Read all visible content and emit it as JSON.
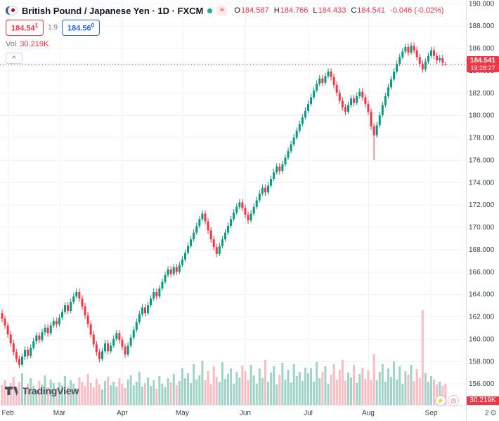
{
  "header": {
    "title": "British Pound / Japanese Yen · 1D · FXCM",
    "ohlc": {
      "o_label": "O",
      "o_value": "184.587",
      "h_label": "H",
      "h_value": "184.766",
      "l_label": "L",
      "l_value": "184.433",
      "c_label": "C",
      "c_value": "184.541",
      "change": "-0.046 (-0.02%)"
    },
    "sell_price": "184.54",
    "sell_sup": "1",
    "spread": "1.9",
    "buy_price": "184.56",
    "buy_sup": "0",
    "vol_label": "Vol",
    "vol_value": "30.219K"
  },
  "price_label": {
    "price": "184.541",
    "countdown": "19:28:27"
  },
  "volume_axis_label": "30.219K",
  "logo": {
    "text": "TradingView"
  },
  "icons": {
    "lightning": "⚡",
    "clock": "◷",
    "gear": "⚙",
    "menu": "≡",
    "collapse": "^"
  },
  "colors": {
    "up": "#089981",
    "down": "#f23645",
    "vol_up": "#9fd4c6",
    "vol_down": "#f7bdc3",
    "grid": "#f0f3fa",
    "axis_border": "#e0e3eb",
    "buy_blue": "#2962ff"
  },
  "chart_data": {
    "type": "candlestick",
    "title": "British Pound / Japanese Yen, 1D, FXCM",
    "ylim": [
      154.1,
      190.3
    ],
    "y_axis": {
      "ticks": [
        190,
        188,
        186,
        184,
        182,
        180,
        178,
        176,
        174,
        172,
        170,
        168,
        166,
        164,
        162,
        160,
        158,
        156
      ]
    },
    "x_axis": {
      "labels": [
        "Feb",
        "Mar",
        "Apr",
        "May",
        "Jun",
        "Jul",
        "Aug",
        "Sep"
      ],
      "tick_indices": [
        2,
        20,
        42,
        63,
        85,
        107,
        128,
        150
      ],
      "partial_right_label": "2"
    },
    "last": {
      "open": 184.587,
      "high": 184.766,
      "low": 184.433,
      "close": 184.541,
      "change": -0.046,
      "change_pct": -0.02
    },
    "candles": [
      [
        162.3,
        162.6,
        161.5,
        161.8
      ],
      [
        161.8,
        162.1,
        160.9,
        161.2
      ],
      [
        161.2,
        161.5,
        160.1,
        160.4
      ],
      [
        160.4,
        160.7,
        159.3,
        159.6
      ],
      [
        159.6,
        159.9,
        158.5,
        158.8
      ],
      [
        158.8,
        159.1,
        157.9,
        158.2
      ],
      [
        158.2,
        158.5,
        157.4,
        157.7
      ],
      [
        157.7,
        158.7,
        157.5,
        158.4
      ],
      [
        158.4,
        159.3,
        158.1,
        159.0
      ],
      [
        159.0,
        159.3,
        158.2,
        158.5
      ],
      [
        158.5,
        159.5,
        158.3,
        159.2
      ],
      [
        159.2,
        160.1,
        159.0,
        159.8
      ],
      [
        159.8,
        160.6,
        159.5,
        160.3
      ],
      [
        160.3,
        160.6,
        159.6,
        159.9
      ],
      [
        159.9,
        160.9,
        159.7,
        160.6
      ],
      [
        160.6,
        161.3,
        160.3,
        161.0
      ],
      [
        161.0,
        161.3,
        160.2,
        160.5
      ],
      [
        160.5,
        161.5,
        160.3,
        161.2
      ],
      [
        161.2,
        161.9,
        161.0,
        161.6
      ],
      [
        161.6,
        161.9,
        161.0,
        161.3
      ],
      [
        161.3,
        162.2,
        161.1,
        161.9
      ],
      [
        161.9,
        162.7,
        161.7,
        162.4
      ],
      [
        162.4,
        163.3,
        162.2,
        163.0
      ],
      [
        163.0,
        163.3,
        162.2,
        162.5
      ],
      [
        162.5,
        163.6,
        162.3,
        163.3
      ],
      [
        163.3,
        164.1,
        163.1,
        163.8
      ],
      [
        163.8,
        164.5,
        163.6,
        164.2
      ],
      [
        164.2,
        164.5,
        163.3,
        163.6
      ],
      [
        163.6,
        163.9,
        162.6,
        162.9
      ],
      [
        162.9,
        163.2,
        161.8,
        162.1
      ],
      [
        162.1,
        162.4,
        161.0,
        161.3
      ],
      [
        161.3,
        161.6,
        160.1,
        160.4
      ],
      [
        160.4,
        160.7,
        159.2,
        159.5
      ],
      [
        159.5,
        159.8,
        158.5,
        158.8
      ],
      [
        158.8,
        159.1,
        157.9,
        158.2
      ],
      [
        158.2,
        159.2,
        158.0,
        158.9
      ],
      [
        158.9,
        159.9,
        158.7,
        159.6
      ],
      [
        159.6,
        159.9,
        158.6,
        158.9
      ],
      [
        158.9,
        159.7,
        158.7,
        159.4
      ],
      [
        159.4,
        160.3,
        159.2,
        160.0
      ],
      [
        160.0,
        160.8,
        159.8,
        160.5
      ],
      [
        160.5,
        160.8,
        159.6,
        159.9
      ],
      [
        159.9,
        160.2,
        159.0,
        159.3
      ],
      [
        159.3,
        159.6,
        158.3,
        158.6
      ],
      [
        158.6,
        159.7,
        158.4,
        159.4
      ],
      [
        159.4,
        160.4,
        159.2,
        160.1
      ],
      [
        160.1,
        161.1,
        159.9,
        160.8
      ],
      [
        160.8,
        161.8,
        160.6,
        161.5
      ],
      [
        161.5,
        162.5,
        161.3,
        162.2
      ],
      [
        162.2,
        163.1,
        162.0,
        162.8
      ],
      [
        162.8,
        163.1,
        162.0,
        162.3
      ],
      [
        162.3,
        163.3,
        162.1,
        163.0
      ],
      [
        163.0,
        163.9,
        162.8,
        163.6
      ],
      [
        163.6,
        164.5,
        163.4,
        164.2
      ],
      [
        164.2,
        164.5,
        163.5,
        163.8
      ],
      [
        163.8,
        164.8,
        163.6,
        164.5
      ],
      [
        164.5,
        165.4,
        164.3,
        165.1
      ],
      [
        165.1,
        166.0,
        164.9,
        165.7
      ],
      [
        165.7,
        166.5,
        165.5,
        166.2
      ],
      [
        166.2,
        166.5,
        165.5,
        165.8
      ],
      [
        165.8,
        166.7,
        165.6,
        166.4
      ],
      [
        166.4,
        166.7,
        165.7,
        166.0
      ],
      [
        166.0,
        166.9,
        165.8,
        166.6
      ],
      [
        166.6,
        167.4,
        166.4,
        167.1
      ],
      [
        167.1,
        168.0,
        166.9,
        167.7
      ],
      [
        167.7,
        168.6,
        167.5,
        168.3
      ],
      [
        168.3,
        169.2,
        168.1,
        168.9
      ],
      [
        168.9,
        169.8,
        168.7,
        169.5
      ],
      [
        169.5,
        170.4,
        169.3,
        170.1
      ],
      [
        170.1,
        171.0,
        169.9,
        170.7
      ],
      [
        170.7,
        171.5,
        170.5,
        171.2
      ],
      [
        171.2,
        171.5,
        170.2,
        170.5
      ],
      [
        170.5,
        170.8,
        169.4,
        169.7
      ],
      [
        169.7,
        170.0,
        168.6,
        168.9
      ],
      [
        168.9,
        169.2,
        167.9,
        168.2
      ],
      [
        168.2,
        168.5,
        167.3,
        167.6
      ],
      [
        167.6,
        168.6,
        167.4,
        168.3
      ],
      [
        168.3,
        169.2,
        168.1,
        168.9
      ],
      [
        168.9,
        169.8,
        168.7,
        169.5
      ],
      [
        169.5,
        170.4,
        169.3,
        170.1
      ],
      [
        170.1,
        171.0,
        169.9,
        170.7
      ],
      [
        170.7,
        171.6,
        170.5,
        171.3
      ],
      [
        171.3,
        172.1,
        171.1,
        171.8
      ],
      [
        171.8,
        172.5,
        171.6,
        172.2
      ],
      [
        172.2,
        172.5,
        171.4,
        171.7
      ],
      [
        171.7,
        172.0,
        170.8,
        171.1
      ],
      [
        171.1,
        171.4,
        170.3,
        170.6
      ],
      [
        170.6,
        171.5,
        170.4,
        171.2
      ],
      [
        171.2,
        172.1,
        171.0,
        171.8
      ],
      [
        171.8,
        172.7,
        171.6,
        172.4
      ],
      [
        172.4,
        173.3,
        172.2,
        173.0
      ],
      [
        173.0,
        173.8,
        172.8,
        173.5
      ],
      [
        173.5,
        173.8,
        172.8,
        173.1
      ],
      [
        173.1,
        174.0,
        172.9,
        173.7
      ],
      [
        173.7,
        174.6,
        173.5,
        174.3
      ],
      [
        174.3,
        175.2,
        174.1,
        174.9
      ],
      [
        174.9,
        175.7,
        174.7,
        175.4
      ],
      [
        175.4,
        175.7,
        174.7,
        175.0
      ],
      [
        175.0,
        175.9,
        174.8,
        175.6
      ],
      [
        175.6,
        176.5,
        175.4,
        176.2
      ],
      [
        176.2,
        177.1,
        176.0,
        176.8
      ],
      [
        176.8,
        177.7,
        176.6,
        177.4
      ],
      [
        177.4,
        178.3,
        177.2,
        178.0
      ],
      [
        178.0,
        178.9,
        177.8,
        178.6
      ],
      [
        178.6,
        179.5,
        178.4,
        179.2
      ],
      [
        179.2,
        180.1,
        179.0,
        179.8
      ],
      [
        179.8,
        180.7,
        179.6,
        180.4
      ],
      [
        180.4,
        181.3,
        180.2,
        181.0
      ],
      [
        181.0,
        181.9,
        180.8,
        181.6
      ],
      [
        181.6,
        182.5,
        181.4,
        182.2
      ],
      [
        182.2,
        183.1,
        182.0,
        182.8
      ],
      [
        182.8,
        183.6,
        182.6,
        183.3
      ],
      [
        183.3,
        183.6,
        182.6,
        182.9
      ],
      [
        182.9,
        183.8,
        182.7,
        183.5
      ],
      [
        183.5,
        184.2,
        183.3,
        183.9
      ],
      [
        183.9,
        184.2,
        183.1,
        183.4
      ],
      [
        183.4,
        183.7,
        182.4,
        182.7
      ],
      [
        182.7,
        183.0,
        181.7,
        182.0
      ],
      [
        182.0,
        182.3,
        181.0,
        181.3
      ],
      [
        181.3,
        181.6,
        180.4,
        180.7
      ],
      [
        180.7,
        181.0,
        180.0,
        180.3
      ],
      [
        180.3,
        181.2,
        180.1,
        180.9
      ],
      [
        180.9,
        181.8,
        180.7,
        181.5
      ],
      [
        181.5,
        181.8,
        180.8,
        181.1
      ],
      [
        181.1,
        182.0,
        180.9,
        181.7
      ],
      [
        181.7,
        182.4,
        181.5,
        182.1
      ],
      [
        182.1,
        182.4,
        181.3,
        181.6
      ],
      [
        181.6,
        181.9,
        180.7,
        181.0
      ],
      [
        181.0,
        181.3,
        180.0,
        180.3
      ],
      [
        180.3,
        180.6,
        178.7,
        179.0
      ],
      [
        179.0,
        179.3,
        176.0,
        178.2
      ],
      [
        178.2,
        179.4,
        178.0,
        179.1
      ],
      [
        179.1,
        180.3,
        178.9,
        180.0
      ],
      [
        180.0,
        181.2,
        179.8,
        180.9
      ],
      [
        180.9,
        182.0,
        180.7,
        181.7
      ],
      [
        181.7,
        182.8,
        181.5,
        182.5
      ],
      [
        182.5,
        183.5,
        182.3,
        183.2
      ],
      [
        183.2,
        184.2,
        183.0,
        183.9
      ],
      [
        183.9,
        184.9,
        183.7,
        184.6
      ],
      [
        184.6,
        185.5,
        184.4,
        185.2
      ],
      [
        185.2,
        186.0,
        185.0,
        185.7
      ],
      [
        185.7,
        186.4,
        185.5,
        186.1
      ],
      [
        186.1,
        186.4,
        185.3,
        185.6
      ],
      [
        185.6,
        186.5,
        185.4,
        186.2
      ],
      [
        186.2,
        186.5,
        185.5,
        185.8
      ],
      [
        185.8,
        186.1,
        184.9,
        185.2
      ],
      [
        185.2,
        185.5,
        184.3,
        184.6
      ],
      [
        184.6,
        184.9,
        183.8,
        184.1
      ],
      [
        184.1,
        185.1,
        183.9,
        184.8
      ],
      [
        184.8,
        185.6,
        184.6,
        185.3
      ],
      [
        185.3,
        186.1,
        185.1,
        185.8
      ],
      [
        185.8,
        186.1,
        185.0,
        185.3
      ],
      [
        185.3,
        185.6,
        184.6,
        184.9
      ],
      [
        184.9,
        185.4,
        184.7,
        185.1
      ],
      [
        185.1,
        185.4,
        184.4,
        184.7
      ],
      [
        184.587,
        184.766,
        184.433,
        184.541
      ]
    ],
    "volumes": [
      28,
      35,
      22,
      31,
      40,
      26,
      33,
      45,
      24,
      30,
      38,
      27,
      21,
      34,
      29,
      42,
      25,
      36,
      31,
      23,
      32,
      28,
      41,
      26,
      35,
      30,
      24,
      39,
      33,
      27,
      44,
      31,
      25,
      37,
      29,
      22,
      34,
      40,
      28,
      33,
      26,
      38,
      30,
      24,
      36,
      42,
      28,
      33,
      47,
      26,
      31,
      39,
      27,
      35,
      23,
      41,
      30,
      25,
      38,
      32,
      44,
      28,
      34,
      52,
      38,
      45,
      31,
      58,
      36,
      42,
      63,
      35,
      48,
      29,
      55,
      40,
      33,
      61,
      37,
      44,
      52,
      30,
      47,
      39,
      56,
      48,
      35,
      57,
      42,
      30,
      52,
      38,
      64,
      33,
      46,
      55,
      29,
      43,
      60,
      36,
      50,
      32,
      58,
      41,
      47,
      34,
      53,
      45,
      52,
      33,
      61,
      38,
      47,
      55,
      30,
      43,
      58,
      36,
      50,
      64,
      34,
      46,
      39,
      57,
      31,
      44,
      53,
      37,
      49,
      35,
      72,
      35,
      47,
      58,
      33,
      52,
      40,
      62,
      36,
      55,
      30,
      48,
      43,
      57,
      34,
      51,
      38,
      135,
      45,
      33,
      41,
      36,
      29,
      33,
      27,
      30.219
    ]
  }
}
